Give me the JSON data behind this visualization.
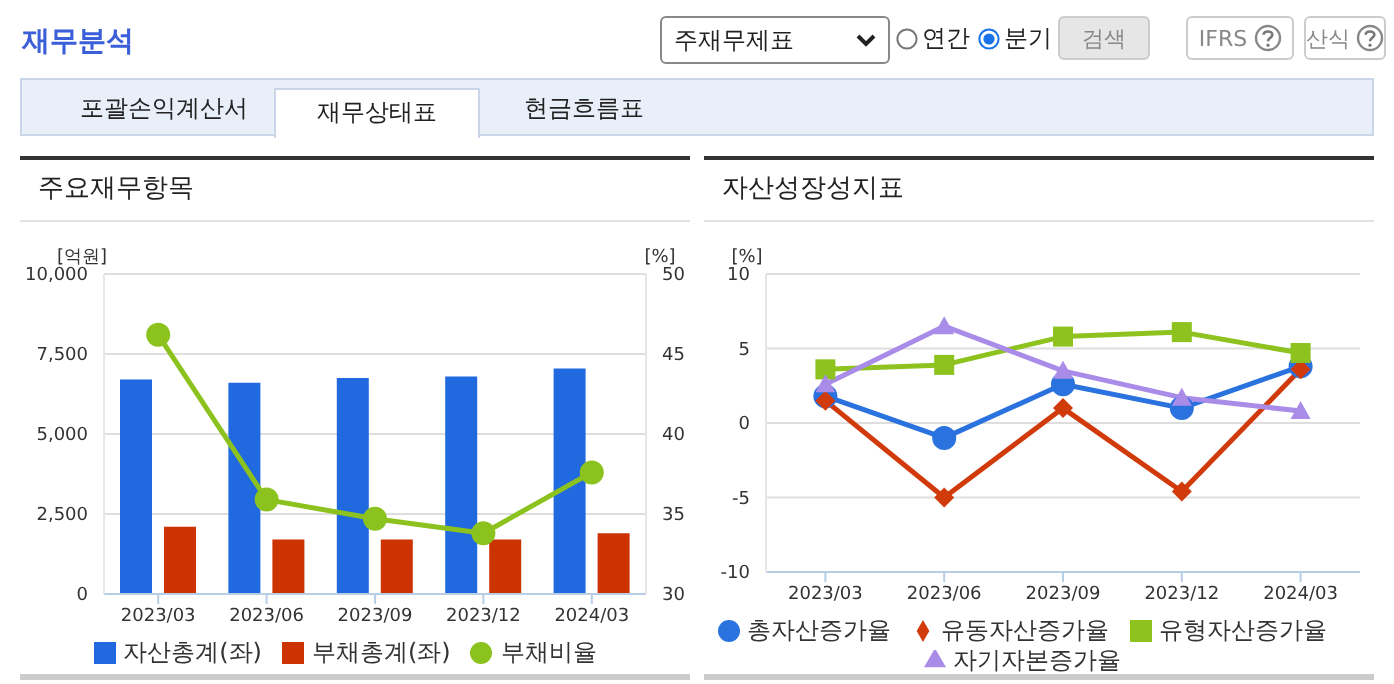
{
  "chart_data": [
    {
      "type": "bar",
      "title": "주요재무항목",
      "ylabel": "[억원]",
      "y2label": "[%]",
      "categories": [
        "2023/03",
        "2023/06",
        "2023/09",
        "2023/12",
        "2024/03"
      ],
      "series": [
        {
          "name": "자산총계(좌)",
          "color": "#2169de",
          "values": [
            6700,
            6600,
            6750,
            6800,
            7050
          ]
        },
        {
          "name": "부채총계(좌)",
          "color": "#cc3300",
          "values": [
            2100,
            1700,
            1700,
            1700,
            1900
          ]
        },
        {
          "name": "부채비율",
          "type": "line",
          "axis": "y2",
          "marker": "circle",
          "color": "#8cc21e",
          "values": [
            46.2,
            35.9,
            34.7,
            33.8,
            37.6
          ]
        }
      ],
      "ylim": [
        0,
        10000
      ],
      "yticks": [
        0,
        {
          "value": 2500,
          "label": "2,500"
        },
        {
          "value": 5000,
          "label": "5,000"
        },
        {
          "value": 7500,
          "label": "7,500"
        },
        {
          "value": 10000,
          "label": "10,000"
        }
      ],
      "y2lim": [
        30,
        50
      ],
      "y2ticks": [
        30,
        35,
        40,
        45,
        50
      ],
      "grid": "y",
      "legend": "bottom",
      "annotations": [
        "재무분석",
        "주재무제표",
        "연간",
        "분기",
        "검색",
        "IFRS",
        "산식",
        "포괄손익계산서",
        "재무상태표",
        "현금흐름표"
      ]
    },
    {
      "type": "line",
      "title": "자산성장성지표",
      "ylabel": "[%]",
      "categories": [
        "2023/03",
        "2023/06",
        "2023/09",
        "2023/12",
        "2024/03"
      ],
      "series": [
        {
          "name": "총자산증가율",
          "marker": "circle",
          "color": "#2a72de",
          "values": [
            1.8,
            -1.0,
            2.6,
            1.0,
            3.8
          ]
        },
        {
          "name": "유동자산증가율",
          "marker": "diamond",
          "color": "#d13a0a",
          "values": [
            1.5,
            -5.0,
            1.0,
            -4.6,
            3.6
          ]
        },
        {
          "name": "유형자산증가율",
          "marker": "square",
          "color": "#8dc21f",
          "values": [
            3.6,
            3.9,
            5.8,
            6.1,
            4.7
          ]
        },
        {
          "name": "자기자본증가율",
          "marker": "triangle",
          "color": "#a98be8",
          "values": [
            2.6,
            6.5,
            3.5,
            1.7,
            0.8
          ]
        }
      ],
      "ylim": [
        -10,
        10
      ],
      "yticks": [
        -10,
        -5,
        0,
        5,
        10
      ],
      "grid": "y",
      "legend": "bottom"
    }
  ]
}
